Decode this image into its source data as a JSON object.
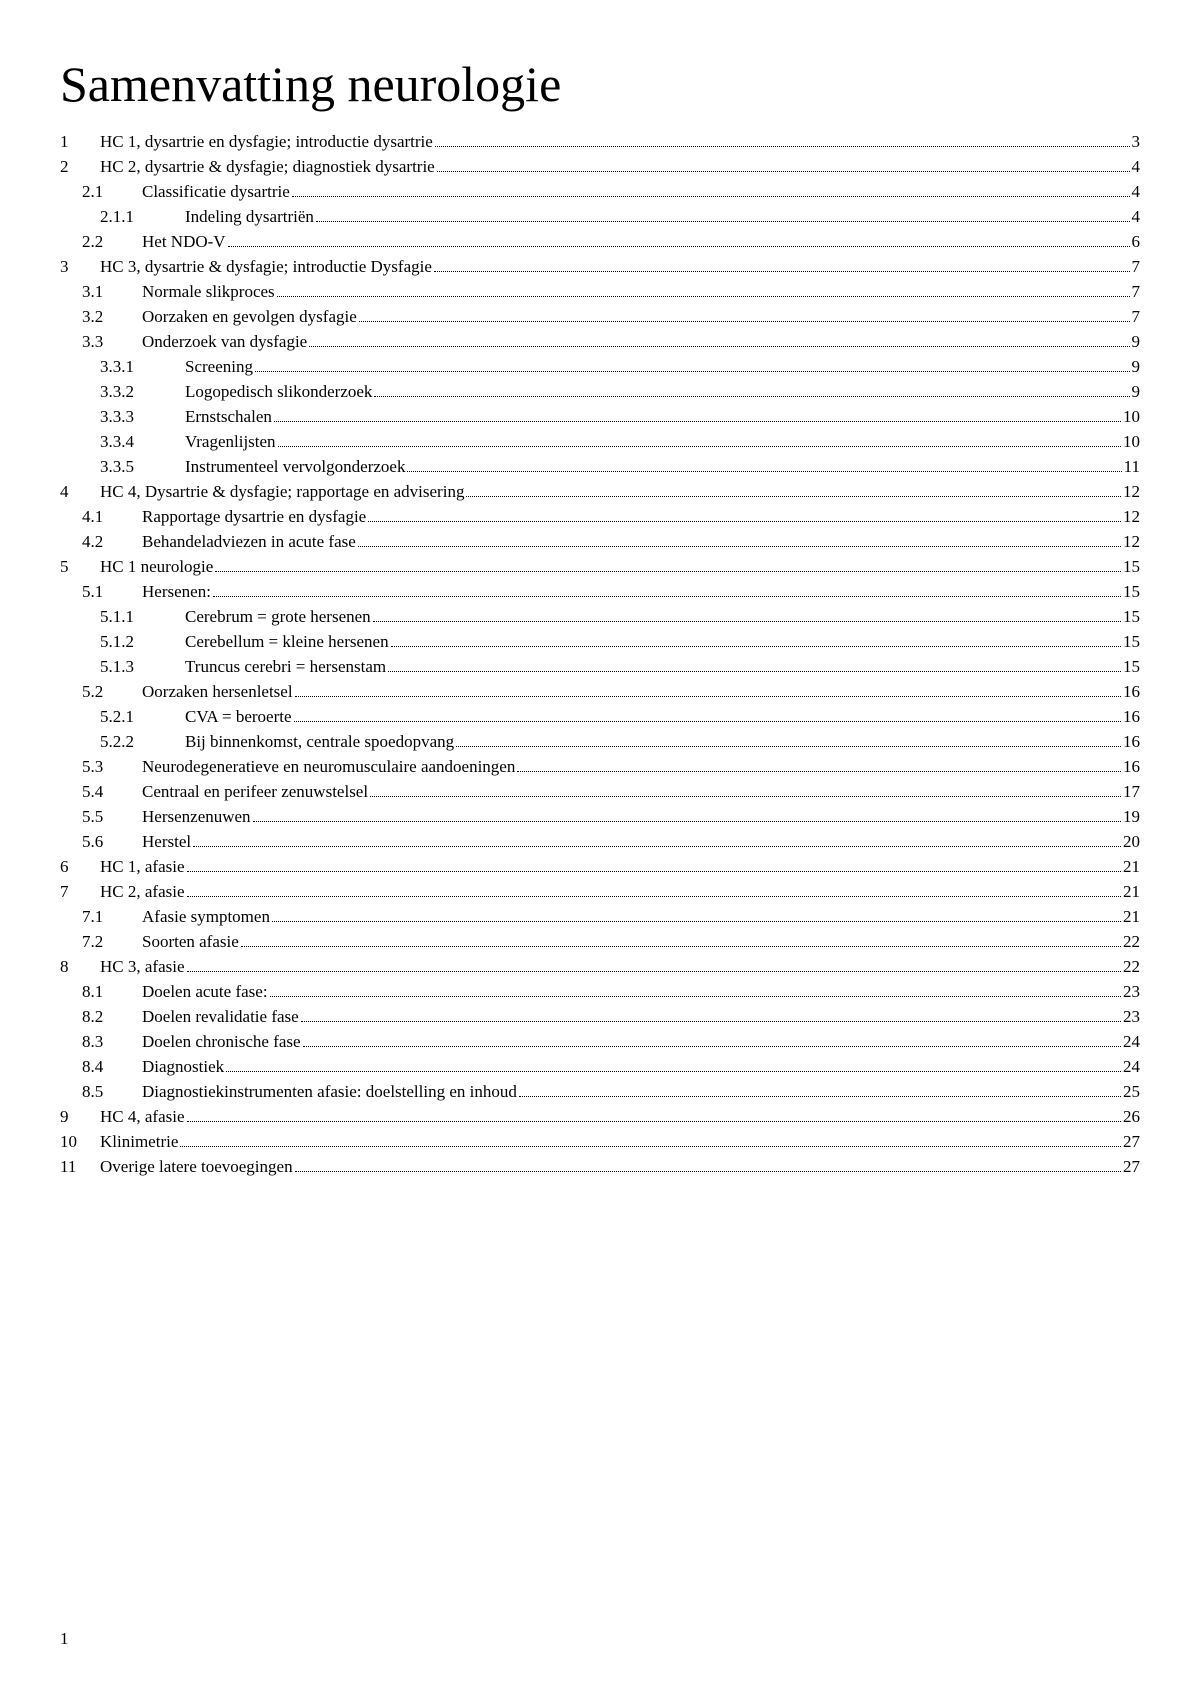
{
  "document": {
    "title": "Samenvatting neurologie",
    "page_number": "1",
    "title_fontsize": 50,
    "body_fontsize": 17,
    "text_color": "#000000",
    "background_color": "#ffffff",
    "font_family": "Times New Roman"
  },
  "toc": {
    "entries": [
      {
        "level": 1,
        "num": "1",
        "title": "HC 1, dysartrie en dysfagie; introductie dysartrie",
        "page": "3"
      },
      {
        "level": 1,
        "num": "2",
        "title": "HC 2, dysartrie & dysfagie; diagnostiek dysartrie",
        "page": "4"
      },
      {
        "level": 2,
        "num": "2.1",
        "title": "Classificatie dysartrie",
        "page": "4"
      },
      {
        "level": 3,
        "num": "2.1.1",
        "title": "Indeling dysartriën",
        "page": "4"
      },
      {
        "level": 2,
        "num": "2.2",
        "title": "Het NDO-V",
        "page": "6"
      },
      {
        "level": 1,
        "num": "3",
        "title": "HC 3, dysartrie & dysfagie; introductie Dysfagie",
        "page": "7"
      },
      {
        "level": 2,
        "num": "3.1",
        "title": "Normale slikproces",
        "page": "7"
      },
      {
        "level": 2,
        "num": "3.2",
        "title": "Oorzaken en gevolgen dysfagie",
        "page": "7"
      },
      {
        "level": 2,
        "num": "3.3",
        "title": "Onderzoek van dysfagie",
        "page": "9"
      },
      {
        "level": 3,
        "num": "3.3.1",
        "title": "Screening",
        "page": "9"
      },
      {
        "level": 3,
        "num": "3.3.2",
        "title": "Logopedisch slikonderzoek",
        "page": "9"
      },
      {
        "level": 3,
        "num": "3.3.3",
        "title": "Ernstschalen",
        "page": "10"
      },
      {
        "level": 3,
        "num": "3.3.4",
        "title": "Vragenlijsten",
        "page": "10"
      },
      {
        "level": 3,
        "num": "3.3.5",
        "title": "Instrumenteel vervolgonderzoek",
        "page": "11"
      },
      {
        "level": 1,
        "num": "4",
        "title": "HC 4, Dysartrie & dysfagie; rapportage en advisering",
        "page": "12"
      },
      {
        "level": 2,
        "num": "4.1",
        "title": "Rapportage dysartrie en dysfagie",
        "page": "12"
      },
      {
        "level": 2,
        "num": "4.2",
        "title": "Behandeladviezen in acute fase",
        "page": "12"
      },
      {
        "level": 1,
        "num": "5",
        "title": "HC 1 neurologie",
        "page": "15"
      },
      {
        "level": 2,
        "num": "5.1",
        "title": "Hersenen:",
        "page": "15"
      },
      {
        "level": 3,
        "num": "5.1.1",
        "title": "Cerebrum = grote hersenen",
        "page": "15"
      },
      {
        "level": 3,
        "num": "5.1.2",
        "title": "Cerebellum = kleine hersenen",
        "page": "15"
      },
      {
        "level": 3,
        "num": "5.1.3",
        "title": "Truncus cerebri = hersenstam",
        "page": "15"
      },
      {
        "level": 2,
        "num": "5.2",
        "title": "Oorzaken hersenletsel",
        "page": "16"
      },
      {
        "level": 3,
        "num": "5.2.1",
        "title": "CVA = beroerte",
        "page": "16"
      },
      {
        "level": 3,
        "num": "5.2.2",
        "title": "Bij binnenkomst, centrale spoedopvang",
        "page": "16"
      },
      {
        "level": 2,
        "num": "5.3",
        "title": "Neurodegeneratieve en neuromusculaire aandoeningen",
        "page": "16"
      },
      {
        "level": 2,
        "num": "5.4",
        "title": "Centraal en perifeer zenuwstelsel",
        "page": "17"
      },
      {
        "level": 2,
        "num": "5.5",
        "title": "Hersenzenuwen",
        "page": "19"
      },
      {
        "level": 2,
        "num": "5.6",
        "title": "Herstel",
        "page": "20"
      },
      {
        "level": 1,
        "num": "6",
        "title": "HC 1, afasie",
        "page": "21"
      },
      {
        "level": 1,
        "num": "7",
        "title": "HC 2, afasie",
        "page": "21"
      },
      {
        "level": 2,
        "num": "7.1",
        "title": "Afasie symptomen",
        "page": "21"
      },
      {
        "level": 2,
        "num": "7.2",
        "title": "Soorten afasie",
        "page": "22"
      },
      {
        "level": 1,
        "num": "8",
        "title": "HC 3, afasie",
        "page": "22"
      },
      {
        "level": 2,
        "num": "8.1",
        "title": "Doelen acute fase:",
        "page": "23"
      },
      {
        "level": 2,
        "num": "8.2",
        "title": "Doelen revalidatie fase",
        "page": "23"
      },
      {
        "level": 2,
        "num": "8.3",
        "title": "Doelen chronische fase",
        "page": "24"
      },
      {
        "level": 2,
        "num": "8.4",
        "title": "Diagnostiek",
        "page": "24"
      },
      {
        "level": 2,
        "num": "8.5",
        "title": "Diagnostiekinstrumenten afasie: doelstelling en inhoud",
        "page": "25"
      },
      {
        "level": 1,
        "num": "9",
        "title": "HC 4, afasie",
        "page": "26"
      },
      {
        "level": 1,
        "num": "10",
        "title": "Klinimetrie",
        "page": "27"
      },
      {
        "level": 1,
        "num": "11",
        "title": "Overige latere toevoegingen",
        "page": "27"
      }
    ]
  }
}
